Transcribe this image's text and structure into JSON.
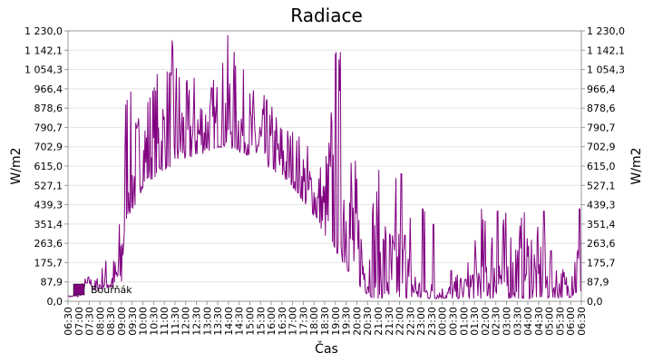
{
  "chart_data": {
    "type": "area",
    "title": "Radiace",
    "xlabel": "Čas",
    "ylabel": "W/m2",
    "ylim": [
      0,
      1230
    ],
    "y_ticks": [
      "0,0",
      "87,9",
      "175,7",
      "263,6",
      "351,4",
      "439,3",
      "527,1",
      "615,0",
      "702,9",
      "790,7",
      "878,6",
      "966,4",
      "1 054,3",
      "1 142,1",
      "1 230,0"
    ],
    "x_ticks": [
      "06:30",
      "07:00",
      "07:30",
      "08:00",
      "08:30",
      "09:00",
      "09:30",
      "10:00",
      "10:30",
      "11:00",
      "11:30",
      "12:00",
      "12:30",
      "13:00",
      "13:30",
      "14:00",
      "14:30",
      "15:00",
      "15:30",
      "16:00",
      "16:30",
      "17:00",
      "17:30",
      "18:00",
      "18:30",
      "19:00",
      "19:30",
      "20:00",
      "20:30",
      "21:00",
      "21:30",
      "22:00",
      "22:30",
      "23:00",
      "23:30",
      "00:00",
      "00:30",
      "01:00",
      "01:30",
      "02:00",
      "02:30",
      "03:00",
      "03:30",
      "04:00",
      "04:30",
      "05:00",
      "05:30",
      "06:00",
      "06:30"
    ],
    "grid": true,
    "legend_position": "bottom-left",
    "series": [
      {
        "name": "Bouřňák",
        "color": "#800080",
        "x": [
          "06:30",
          "07:00",
          "07:15",
          "07:30",
          "07:45",
          "08:00",
          "08:15",
          "08:30",
          "08:45",
          "09:00",
          "09:15",
          "09:30",
          "09:45",
          "10:00",
          "10:30",
          "11:00",
          "11:30",
          "12:00",
          "12:30",
          "13:00",
          "13:30",
          "14:00",
          "14:30",
          "15:00",
          "15:30",
          "16:00",
          "16:30",
          "17:00",
          "17:30",
          "18:00",
          "18:30",
          "19:00",
          "19:30",
          "20:00",
          "20:30",
          "20:45",
          "21:00",
          "21:30",
          "22:00",
          "23:00",
          "00:00",
          "01:00",
          "02:00",
          "03:00",
          "04:00",
          "05:00",
          "06:00",
          "06:30"
        ],
        "base": [
          20,
          20,
          50,
          80,
          45,
          50,
          60,
          50,
          60,
          70,
          390,
          410,
          450,
          520,
          560,
          600,
          620,
          640,
          660,
          680,
          700,
          700,
          680,
          660,
          630,
          600,
          560,
          520,
          450,
          390,
          300,
          230,
          150,
          80,
          30,
          15,
          12,
          12,
          12,
          12,
          12,
          12,
          12,
          12,
          12,
          14,
          18,
          22
        ],
        "peak": [
          25,
          40,
          110,
          120,
          100,
          150,
          210,
          200,
          230,
          500,
          1230,
          860,
          900,
          1000,
          1050,
          1100,
          1230,
          1000,
          1080,
          1020,
          1050,
          1230,
          1100,
          1000,
          960,
          920,
          860,
          820,
          760,
          700,
          660,
          1230,
          1230,
          600,
          380,
          600,
          620,
          400,
          420,
          120,
          80,
          140,
          420,
          420,
          420,
          250,
          130,
          420
        ]
      }
    ],
    "spikes": [
      {
        "x": "21:50",
        "value": 560
      },
      {
        "x": "22:05",
        "value": 580
      },
      {
        "x": "22:15",
        "value": 300
      },
      {
        "x": "22:30",
        "value": 380
      },
      {
        "x": "23:05",
        "value": 420
      },
      {
        "x": "23:10",
        "value": 410
      },
      {
        "x": "23:35",
        "value": 350
      },
      {
        "x": "00:25",
        "value": 140
      },
      {
        "x": "01:05",
        "value": 100
      },
      {
        "x": "01:50",
        "value": 420
      },
      {
        "x": "02:35",
        "value": 410
      },
      {
        "x": "03:30",
        "value": 190
      },
      {
        "x": "03:55",
        "value": 120
      },
      {
        "x": "04:10",
        "value": 280
      },
      {
        "x": "04:45",
        "value": 410
      },
      {
        "x": "05:05",
        "value": 230
      },
      {
        "x": "05:40",
        "value": 110
      },
      {
        "x": "06:25",
        "value": 420
      }
    ]
  }
}
